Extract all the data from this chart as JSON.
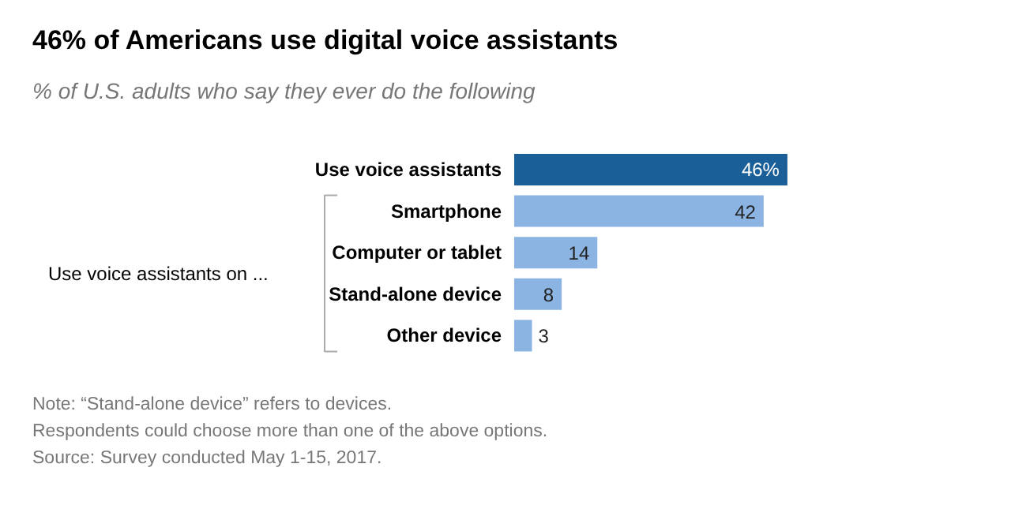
{
  "chart_data": {
    "type": "bar",
    "orientation": "horizontal",
    "title": "46% of Americans use digital voice assistants",
    "subtitle": "% of U.S. adults who say they ever do the following",
    "categories": [
      "Use voice assistants",
      "Smartphone",
      "Computer or tablet",
      "Stand-alone device",
      "Other device"
    ],
    "values": [
      46,
      42,
      14,
      8,
      3
    ],
    "colors": [
      "#1b5f98",
      "#8cb4e2",
      "#8cb4e2",
      "#8cb4e2",
      "#8cb4e2"
    ],
    "data_labels": true,
    "value_labels": [
      "46%",
      "42",
      "14",
      "8",
      "3"
    ],
    "annotations": [
      "Use voice assistants on ...",
      "Note: “Stand-alone device” refers to devices.",
      "Respondents could choose more than one of the above options.",
      "Source: Survey conducted May 1-15, 2017."
    ]
  }
}
